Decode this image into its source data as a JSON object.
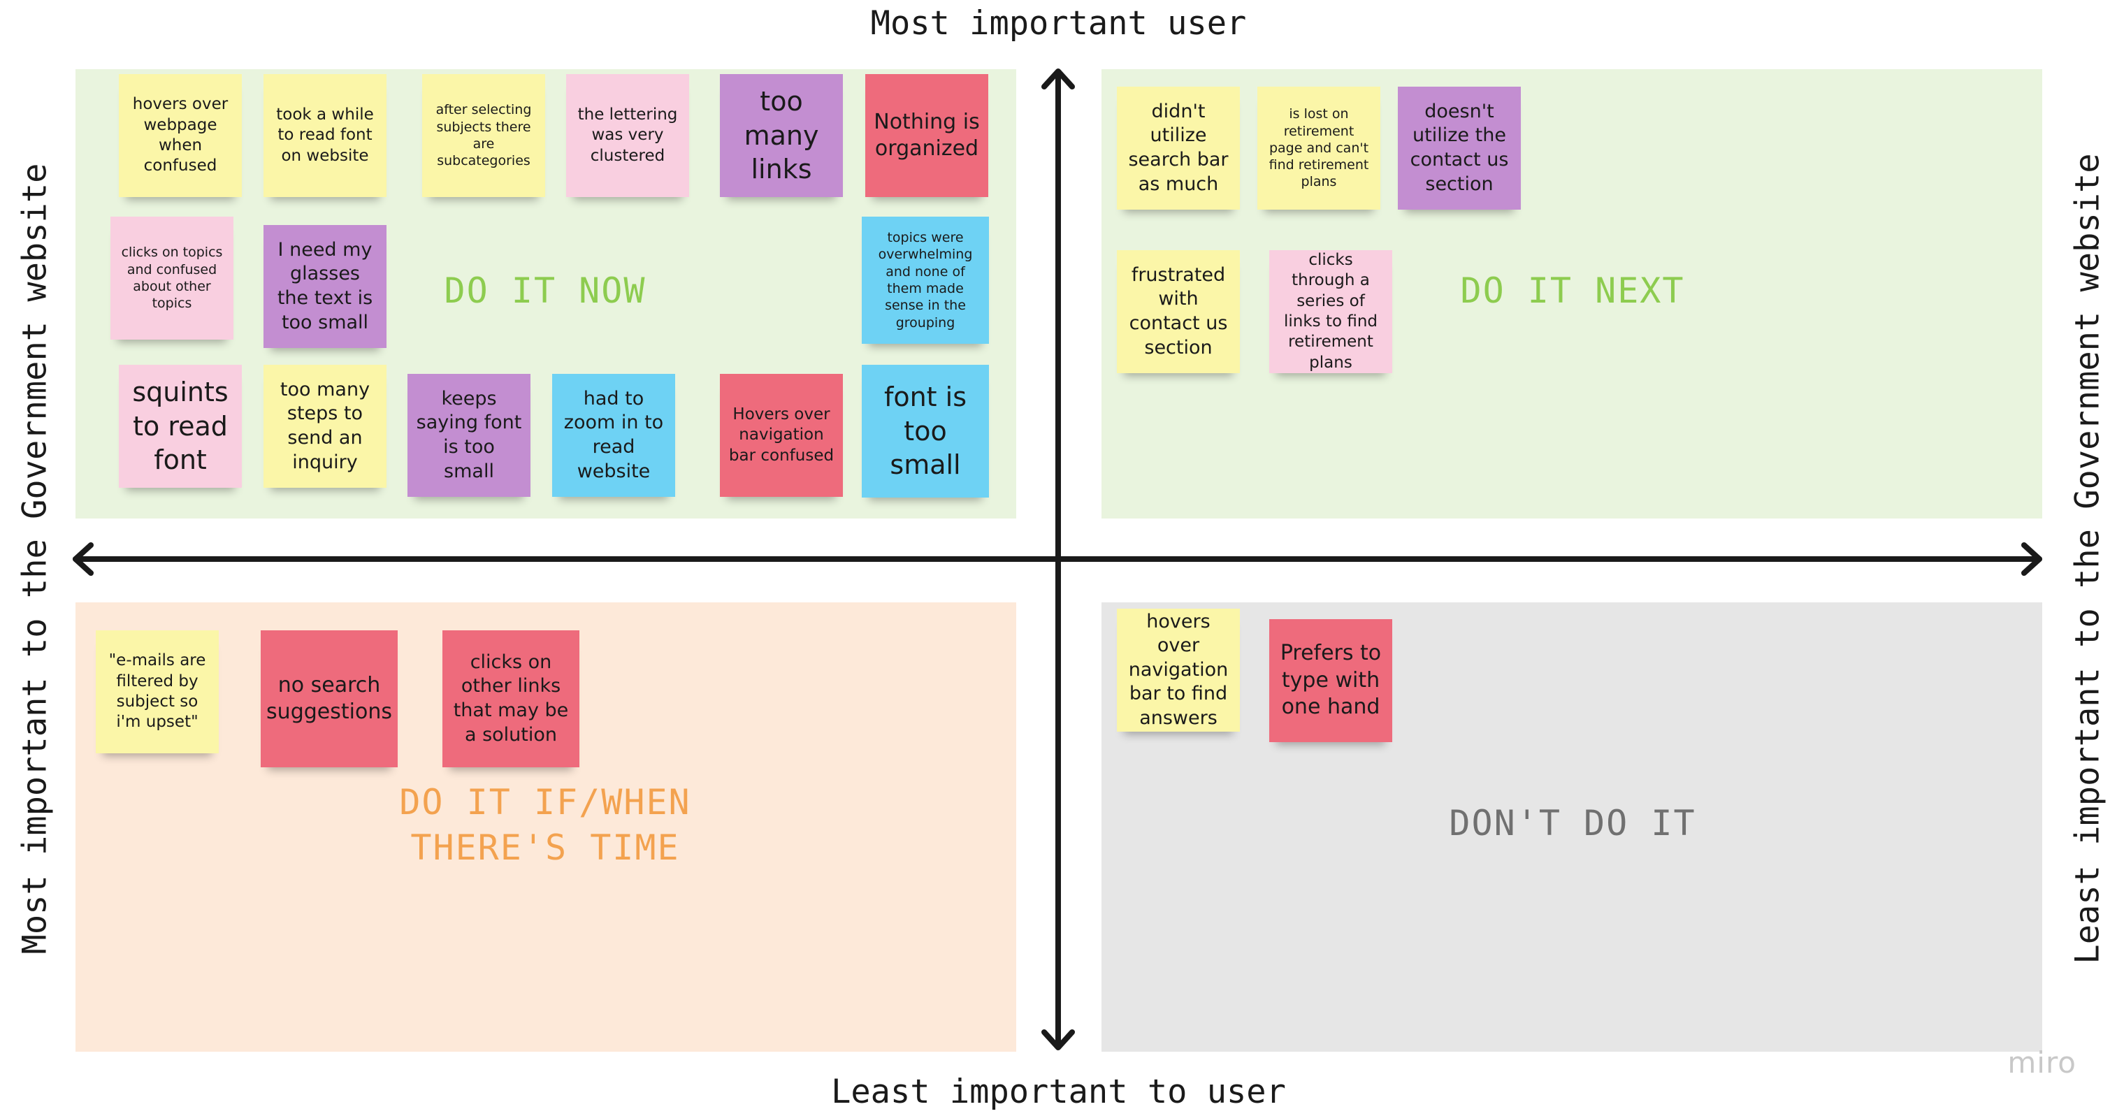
{
  "axes": {
    "top": "Most important user",
    "bottom": "Least important to user",
    "left": "Most important to the Government website",
    "right": "Least important to the Government website"
  },
  "quadrants": {
    "do_now": {
      "title": "DO IT NOW",
      "color": "#8dcc4f",
      "bg": "#e9f4de"
    },
    "do_next": {
      "title": "DO IT NEXT",
      "color": "#8dcc4f",
      "bg": "#e9f4de"
    },
    "do_if_time": {
      "title_line1": "DO IT IF/WHEN",
      "title_line2": "THERE'S TIME",
      "color": "#f3a24f",
      "bg": "#fde9d9"
    },
    "dont": {
      "title": "DON'T DO IT",
      "color": "#707070",
      "bg": "#e6e6e6"
    }
  },
  "notes": {
    "n1": "hovers over webpage when confused",
    "n2": "took a while to read font on website",
    "n3": "after selecting subjects there are subcategories",
    "n4": "the lettering was very clustered",
    "n5": "too many links",
    "n6": "Nothing is organized",
    "n7": "clicks on topics and confused about other topics",
    "n8": "I need my glasses the text is too small",
    "n9": "topics were overwhelming and none of them made sense in the grouping",
    "n10": "squints to read font",
    "n11": "too many steps to send an inquiry",
    "n12": "keeps saying font is too small",
    "n13": "had to zoom in to read website",
    "n14": "Hovers over navigation bar confused",
    "n15": "font is too small",
    "n16": "didn't utilize search bar as much",
    "n17": "is lost on retirement page and can't find retirement plans",
    "n18": "doesn't utilize the contact us section",
    "n19": "frustrated with contact us section",
    "n20": "clicks through a series of links to find retirement plans",
    "n21": "\"e-mails are filtered by subject so i'm upset\"",
    "n22": "no search suggestions",
    "n23": "clicks on other links that may be a solution",
    "n24": "hovers over navigation bar to find answers",
    "n25": "Prefers to type with one hand"
  },
  "brand": "miro"
}
